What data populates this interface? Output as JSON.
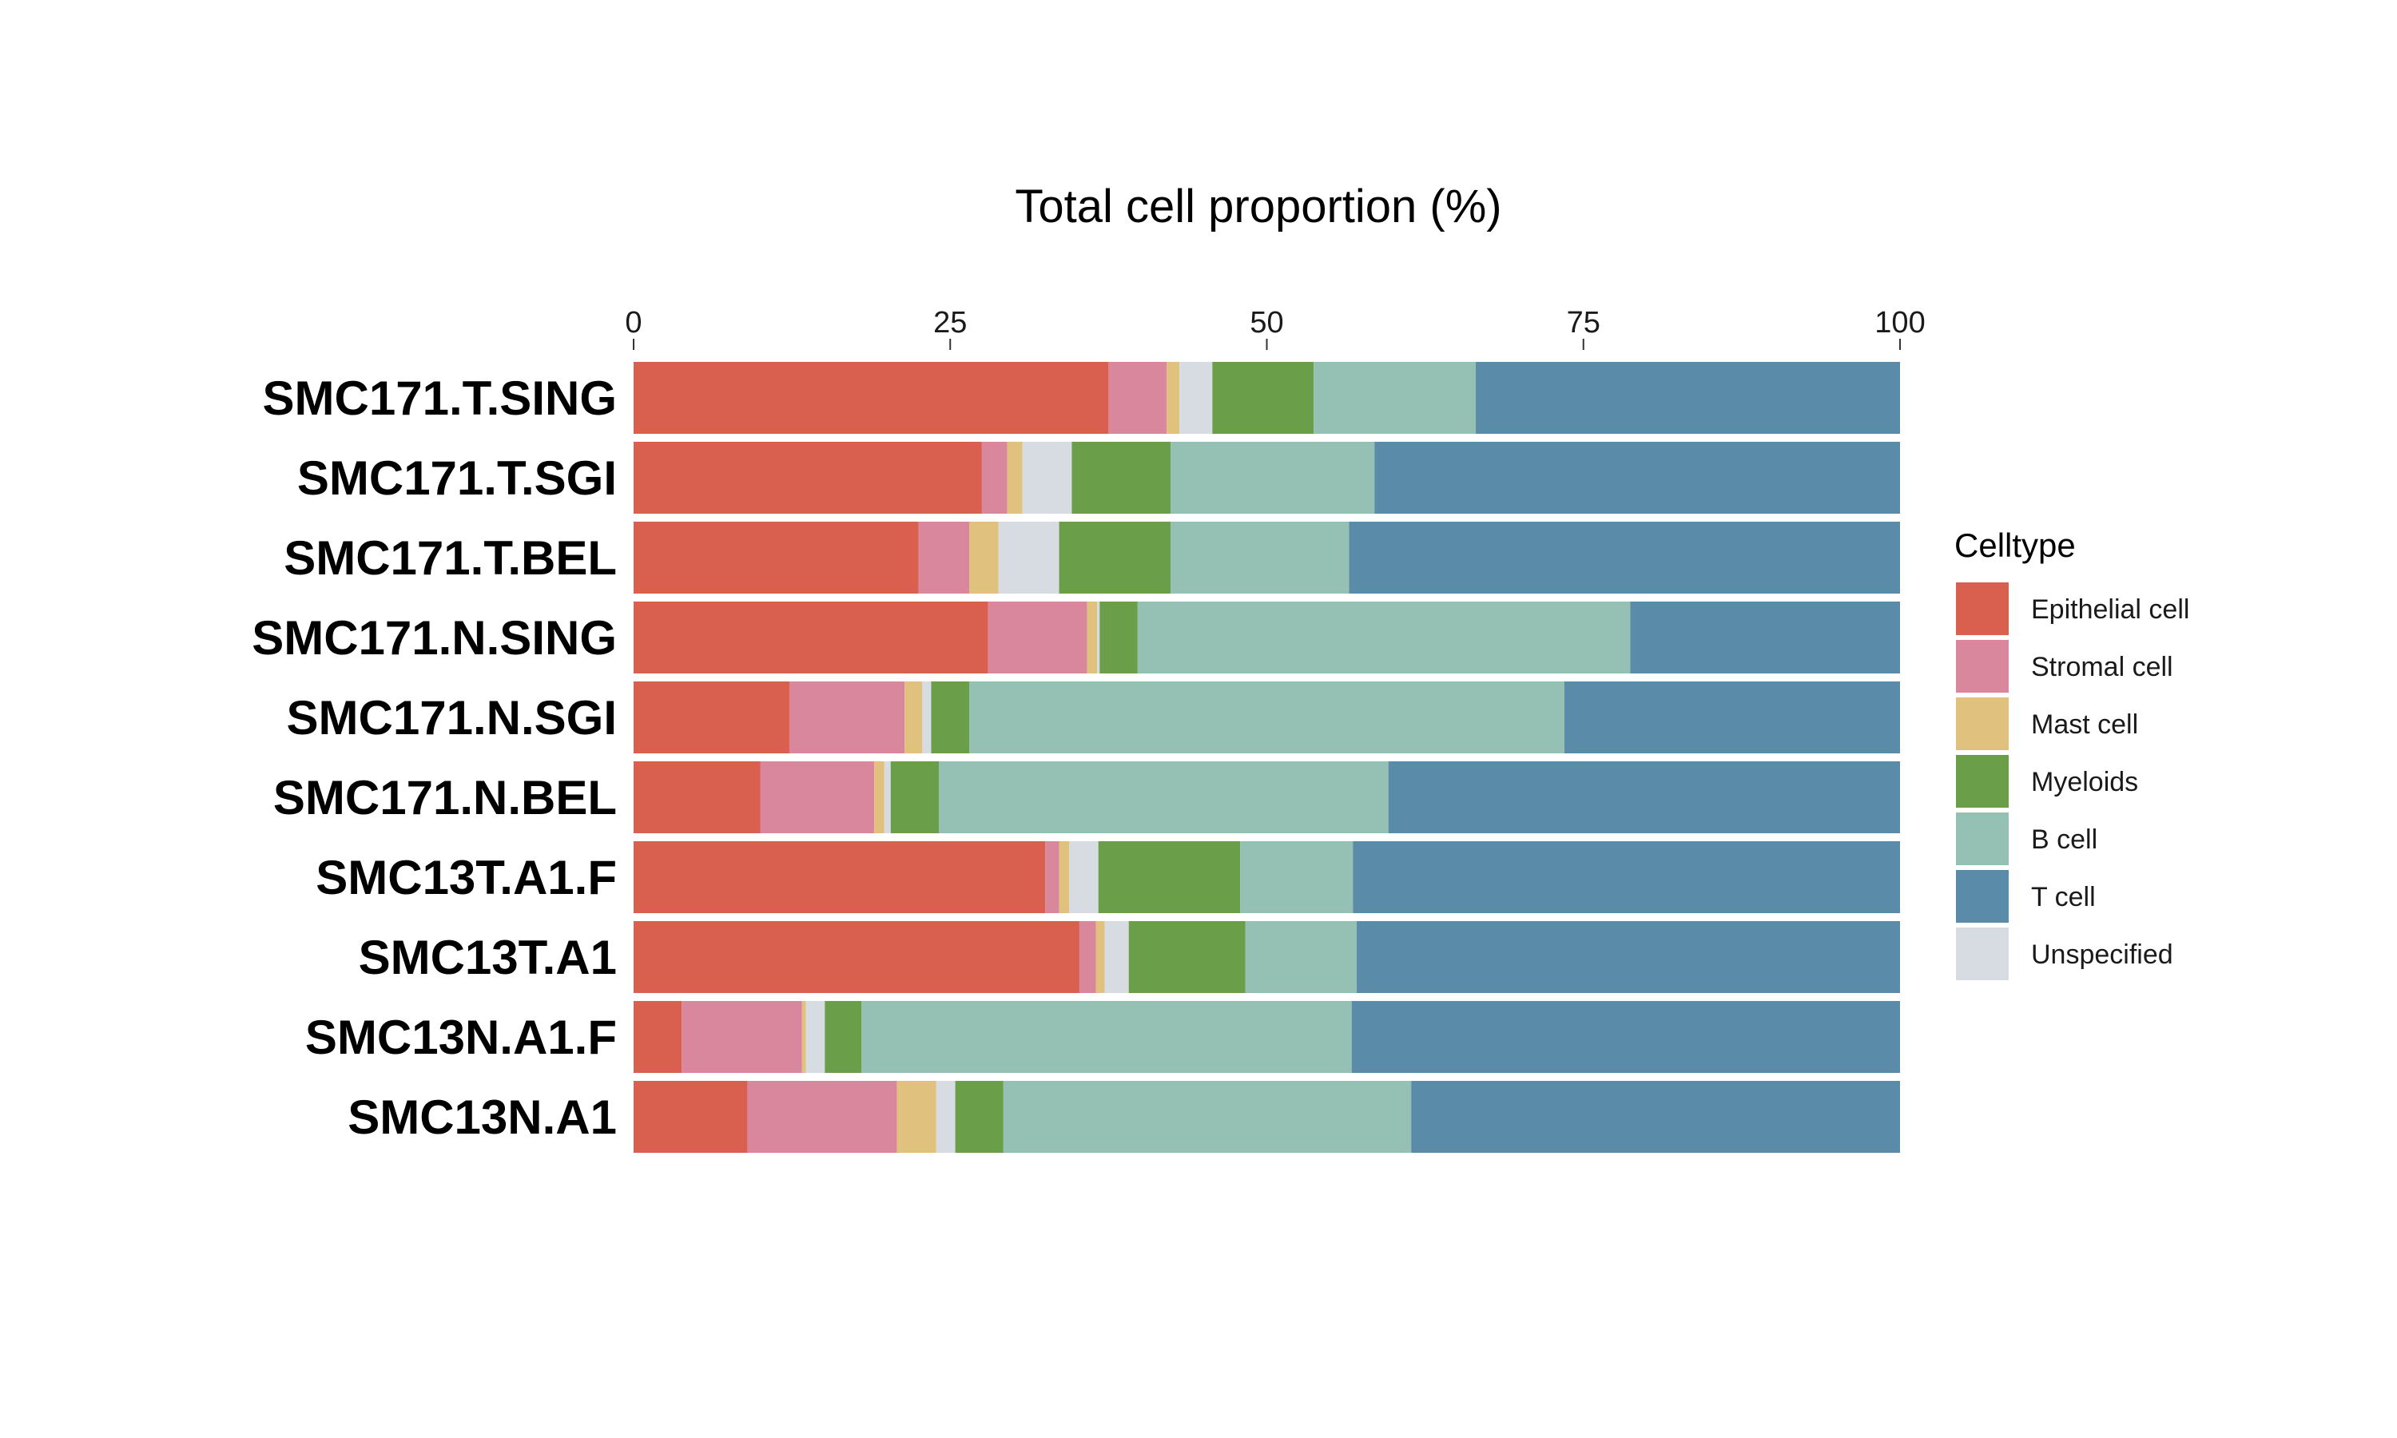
{
  "chart_data": {
    "type": "bar",
    "orientation": "horizontal",
    "stacked": true,
    "title": "",
    "xlabel": "Total cell proportion (%)",
    "ylabel": "",
    "xlim": [
      0,
      100
    ],
    "xticks": [
      0,
      25,
      50,
      75,
      100
    ],
    "xaxis_position": "top",
    "grid": false,
    "legend_position": "right",
    "legend_title": "Celltype",
    "categories": [
      "SMC171.T.SING",
      "SMC171.T.SGI",
      "SMC171.T.BEL",
      "SMC171.N.SING",
      "SMC171.N.SGI",
      "SMC171.N.BEL",
      "SMC13T.A1.F",
      "SMC13T.A1",
      "SMC13N.A1.F",
      "SMC13N.A1"
    ],
    "series": [
      {
        "name": "Epithelial cell",
        "color": "#d95f4e",
        "values": [
          37.5,
          27.5,
          22.5,
          28.0,
          12.3,
          10.0,
          32.5,
          35.2,
          3.8,
          9.0
        ]
      },
      {
        "name": "Stromal cell",
        "color": "#d9879c",
        "values": [
          4.6,
          2.0,
          4.0,
          7.8,
          9.1,
          9.0,
          1.1,
          1.3,
          9.5,
          11.8
        ]
      },
      {
        "name": "Mast cell",
        "color": "#e0c27e",
        "values": [
          1.0,
          1.2,
          2.3,
          0.8,
          1.4,
          0.8,
          0.8,
          0.7,
          0.3,
          3.1
        ]
      },
      {
        "name": "Myeloids",
        "color": "#6a9e48",
        "values": [
          8.0,
          7.8,
          8.8,
          3.0,
          3.0,
          3.8,
          11.2,
          9.2,
          2.9,
          3.8
        ]
      },
      {
        "name": "B cell",
        "color": "#94c1b4",
        "values": [
          12.8,
          16.1,
          14.1,
          38.9,
          47.0,
          35.5,
          8.9,
          8.8,
          38.7,
          32.2
        ]
      },
      {
        "name": "T cell",
        "color": "#5a8ba8",
        "values": [
          33.5,
          41.5,
          43.5,
          21.3,
          26.5,
          40.4,
          43.2,
          42.9,
          43.3,
          38.6
        ]
      },
      {
        "name": "Unspecified",
        "color": "#d6dce2",
        "values": [
          2.6,
          3.9,
          4.8,
          0.2,
          0.7,
          0.5,
          2.3,
          1.9,
          1.5,
          1.5
        ]
      }
    ],
    "stack_order": [
      "Epithelial cell",
      "Stromal cell",
      "Mast cell",
      "Unspecified",
      "Myeloids",
      "B cell",
      "T cell"
    ],
    "legend_order": [
      "Epithelial cell",
      "Stromal cell",
      "Mast cell",
      "Myeloids",
      "B cell",
      "T cell",
      "Unspecified"
    ]
  }
}
